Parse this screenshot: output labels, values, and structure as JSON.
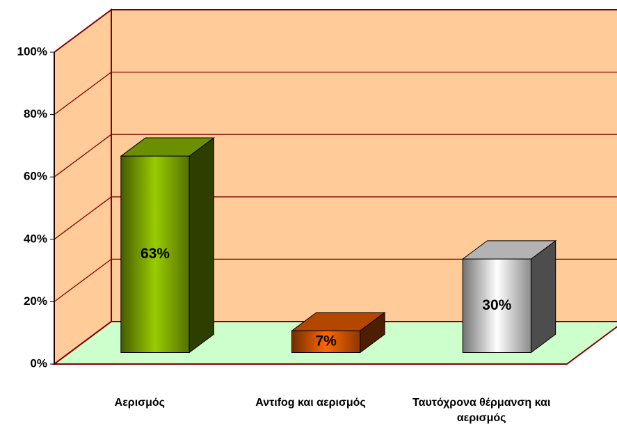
{
  "chart_data": {
    "type": "bar3d",
    "categories": [
      "Αερισμός",
      "Αντιfog και αερισμός",
      "Ταυτόχρονα θέρμανση και αερισμός"
    ],
    "values": [
      63,
      7,
      30
    ],
    "value_labels": [
      "63%",
      "7%",
      "30%"
    ],
    "colors": [
      "#99cc00",
      "#ff6600",
      "#ffffff"
    ],
    "ylim": [
      0,
      100
    ],
    "yticks": [
      {
        "value": 0,
        "label": "0%"
      },
      {
        "value": 20,
        "label": "20%"
      },
      {
        "value": 40,
        "label": "40%"
      },
      {
        "value": 60,
        "label": "60%"
      },
      {
        "value": 80,
        "label": "80%"
      },
      {
        "value": 100,
        "label": "100%"
      }
    ],
    "grid": true,
    "wall_color": "#ffcc99",
    "floor_color": "#ccffcc",
    "grid_color": "#800000"
  }
}
